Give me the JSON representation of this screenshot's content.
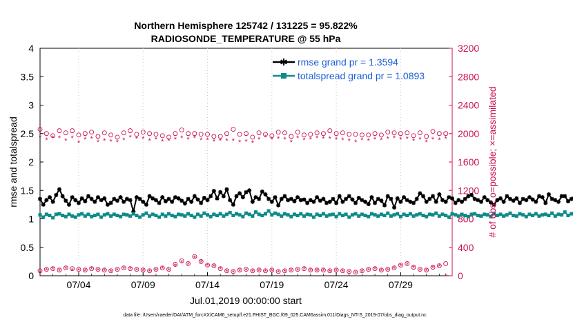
{
  "chart_data": {
    "type": "line",
    "title_line1": "Northern Hemisphere 125742 / 131225 = 95.822%",
    "title_line2": "RADIOSONDE_TEMPERATURE @ 55 hPa",
    "xlabel": "Jul.01,2019 00:00:00 start",
    "ylabel_left": "rmse and totalspread",
    "ylabel_right": "# of obs: o=possible; ×=assimilated",
    "x_range_days": [
      0,
      32
    ],
    "y_left_range": [
      0,
      4
    ],
    "y_right_range": [
      0,
      3200
    ],
    "x_ticks": [
      {
        "day": 3,
        "label": "07/04"
      },
      {
        "day": 8,
        "label": "07/09"
      },
      {
        "day": 13,
        "label": "07/14"
      },
      {
        "day": 18,
        "label": "07/19"
      },
      {
        "day": 23,
        "label": "07/24"
      },
      {
        "day": 28,
        "label": "07/29"
      }
    ],
    "y_left_ticks": [
      "0",
      "0.5",
      "1",
      "1.5",
      "2",
      "2.5",
      "3",
      "3.5",
      "4"
    ],
    "y_left_tick_values": [
      0,
      0.5,
      1,
      1.5,
      2,
      2.5,
      3,
      3.5,
      4
    ],
    "y_right_ticks": [
      "0",
      "400",
      "800",
      "1200",
      "1600",
      "2000",
      "2400",
      "2800",
      "3200"
    ],
    "y_right_tick_values": [
      0,
      400,
      800,
      1200,
      1600,
      2000,
      2400,
      2800,
      3200
    ],
    "legend_position": "top-right",
    "series": [
      {
        "name": "rmse grand pr = 1.3594",
        "color": "#000000",
        "marker": "star",
        "x_start": 0.0,
        "x_step": 0.25,
        "values": [
          1.35,
          1.25,
          1.33,
          1.38,
          1.3,
          1.42,
          1.52,
          1.4,
          1.32,
          1.25,
          1.38,
          1.33,
          1.28,
          1.36,
          1.31,
          1.4,
          1.35,
          1.3,
          1.38,
          1.33,
          1.36,
          1.25,
          1.28,
          1.35,
          1.32,
          1.38,
          1.3,
          1.35,
          1.33,
          1.13,
          1.38,
          1.35,
          1.3,
          1.25,
          1.4,
          1.36,
          1.33,
          1.28,
          1.38,
          1.31,
          1.35,
          1.3,
          1.38,
          1.36,
          1.32,
          1.27,
          1.35,
          1.3,
          1.4,
          1.34,
          1.28,
          1.37,
          1.33,
          1.4,
          1.49,
          1.36,
          1.47,
          1.4,
          1.52,
          1.33,
          1.25,
          1.4,
          1.45,
          1.38,
          1.47,
          1.5,
          1.3,
          1.38,
          1.35,
          1.48,
          1.43,
          1.35,
          1.3,
          1.38,
          1.24,
          1.35,
          1.4,
          1.33,
          1.35,
          1.31,
          1.38,
          1.33,
          1.34,
          1.28,
          1.33,
          1.3,
          1.38,
          1.32,
          1.35,
          1.28,
          1.3,
          1.35,
          1.28,
          1.4,
          1.3,
          1.35,
          1.4,
          1.34,
          1.28,
          1.37,
          1.33,
          1.3,
          1.26,
          1.38,
          1.28,
          1.35,
          1.32,
          1.24,
          1.4,
          1.35,
          1.2,
          1.36,
          1.3,
          1.38,
          1.33,
          1.3,
          1.28,
          1.35,
          1.45,
          1.4,
          1.3,
          1.35,
          1.4,
          1.3,
          1.43,
          1.33,
          1.3,
          1.38,
          1.36,
          1.28,
          1.33,
          1.3,
          1.35,
          1.4,
          1.42,
          1.35,
          1.33,
          1.3,
          1.38,
          1.33,
          1.29,
          1.25,
          1.33,
          1.36,
          1.3,
          1.4,
          1.35,
          1.32,
          1.36,
          1.28,
          1.35,
          1.33,
          1.38,
          1.34,
          1.3,
          1.4,
          1.38,
          1.28,
          1.43,
          1.35,
          1.33,
          1.3,
          1.4,
          1.4,
          1.31,
          1.35,
          1.38,
          1.28,
          1.35,
          1.35,
          1.32,
          1.26,
          1.4,
          1.33,
          1.25,
          1.36,
          1.38,
          1.3,
          1.38,
          1.33,
          1.28,
          1.38,
          1.35,
          1.4,
          1.36,
          1.3,
          1.38,
          1.33,
          1.3,
          1.35,
          1.33,
          1.4,
          1.25,
          1.33,
          1.38,
          1.3,
          1.35,
          1.38,
          1.3,
          1.4,
          1.35,
          1.36,
          1.38,
          1.28,
          1.35,
          1.33,
          1.42,
          1.36,
          1.38,
          1.28,
          1.37,
          1.35,
          1.3,
          1.4,
          1.35,
          1.35,
          1.28,
          1.38,
          1.33,
          1.28,
          1.43,
          1.35,
          1.3,
          1.45,
          1.38,
          1.3,
          1.36,
          1.33,
          1.4,
          1.38,
          1.33,
          1.35,
          1.38,
          1.4,
          1.33,
          1.3,
          1.38,
          1.45,
          1.35,
          1.33,
          1.4,
          1.38,
          1.35,
          1.3,
          1.38,
          1.33,
          1.35,
          1.4,
          1.36,
          1.38,
          1.33,
          1.4,
          1.35,
          1.4,
          1.3,
          1.35,
          1.38,
          1.33,
          1.38,
          1.3,
          1.35,
          1.35,
          1.36,
          1.4,
          1.35,
          1.3,
          1.38,
          1.33,
          1.4,
          1.35,
          1.3,
          1.42,
          1.35,
          1.38,
          1.33,
          1.3,
          1.38,
          1.33,
          1.35,
          1.36,
          1.3,
          1.25,
          1.35,
          1.4,
          1.38,
          1.36,
          1.35,
          1.3,
          1.38,
          1.33,
          1.4,
          1.35,
          1.33,
          1.3,
          1.38,
          1.35,
          1.36,
          1.38,
          1.35,
          1.38,
          1.3,
          1.36,
          1.33,
          1.4,
          1.35,
          1.3,
          1.38,
          1.35,
          1.36,
          1.33,
          1.35,
          1.38,
          1.33,
          1.3,
          1.35,
          1.4,
          1.35,
          1.38,
          1.33,
          1.3,
          1.35,
          1.38,
          1.33,
          1.36,
          1.3,
          1.35,
          1.4,
          1.38,
          1.33,
          1.35,
          1.36,
          1.38,
          1.35,
          1.3,
          1.38,
          1.35,
          1.35,
          1.33,
          1.35,
          1.28,
          1.3
        ]
      },
      {
        "name": "totalspread grand pr = 1.0893",
        "color": "#0f8a8a",
        "marker": "square",
        "x_start": 0.0,
        "x_step": 0.25,
        "values": [
          1.07,
          1.03,
          1.08,
          1.06,
          1.02,
          1.08,
          1.09,
          1.06,
          1.04,
          1.08,
          1.05,
          1.03,
          1.07,
          1.09,
          1.05,
          1.08,
          1.04,
          1.06,
          1.08,
          1.03,
          1.07,
          1.09,
          1.05,
          1.08,
          1.06,
          1.04,
          1.08,
          1.07,
          1.05,
          1.09,
          1.06,
          1.03,
          1.07,
          1.1,
          1.05,
          1.08,
          1.06,
          1.03,
          1.08,
          1.05,
          1.09,
          1.06,
          1.04,
          1.08,
          1.07,
          1.05,
          1.09,
          1.06,
          1.03,
          1.08,
          1.05,
          1.1,
          1.07,
          1.04,
          1.08,
          1.06,
          1.09,
          1.05,
          1.08,
          1.11,
          1.06,
          1.09,
          1.07,
          1.04,
          1.1,
          1.08,
          1.05,
          1.12,
          1.08,
          1.06,
          1.09,
          1.14,
          1.07,
          1.1,
          1.08,
          1.05,
          1.09,
          1.07,
          1.04,
          1.08,
          1.06,
          1.09,
          1.05,
          1.08,
          1.07,
          1.03,
          1.08,
          1.06,
          1.09,
          1.05,
          1.07,
          1.08,
          1.04,
          1.09,
          1.06,
          1.08,
          1.03,
          1.07,
          1.09,
          1.05,
          1.08,
          1.06,
          1.04,
          1.09,
          1.07,
          1.05,
          1.08,
          1.06,
          1.1,
          1.05,
          1.07,
          1.09,
          1.04,
          1.08,
          1.06,
          1.09,
          1.05,
          1.07,
          1.09,
          1.06,
          1.04,
          1.08,
          1.07,
          1.1,
          1.05,
          1.08,
          1.06,
          1.03,
          1.09,
          1.07,
          1.05,
          1.08,
          1.06,
          1.04,
          1.08,
          1.09,
          1.06,
          1.05,
          1.08,
          1.07,
          1.04,
          1.09,
          1.06,
          1.08,
          1.05,
          1.07,
          1.1,
          1.06,
          1.05,
          1.09,
          1.07,
          1.04,
          1.08,
          1.06,
          1.09,
          1.05,
          1.07,
          1.08,
          1.06,
          1.1,
          1.05,
          1.08,
          1.07,
          1.12,
          1.06,
          1.09,
          1.07,
          1.05,
          1.11,
          1.08,
          1.06,
          1.09,
          1.07,
          1.04,
          1.08,
          1.06,
          1.09,
          1.05,
          1.07,
          1.02,
          1.08,
          1.06,
          1.09,
          1.04,
          1.07,
          1.08,
          1.05,
          1.09,
          1.06,
          1.03,
          1.08,
          1.07,
          1.05,
          1.09,
          1.06,
          1.04,
          1.08,
          1.06,
          1.09,
          1.05,
          1.07,
          1.08,
          1.03,
          1.06,
          1.09,
          1.05,
          1.08,
          1.06,
          1.04,
          1.08,
          1.07,
          1.05,
          1.09,
          1.06,
          1.03,
          1.07,
          1.09,
          1.05,
          1.08,
          1.06,
          1.04,
          1.08,
          1.07,
          1.05,
          1.09,
          1.06,
          1.03,
          1.08,
          1.06,
          1.09,
          1.05,
          1.07,
          1.08,
          1.04,
          1.09,
          1.06,
          1.08,
          1.05,
          1.07,
          1.09,
          1.06,
          1.04,
          1.08,
          1.07,
          1.05,
          1.09,
          1.06,
          1.03,
          1.08,
          1.07,
          1.05,
          1.09,
          1.06,
          1.04,
          1.08,
          1.06,
          1.09,
          1.05,
          1.07,
          1.08,
          1.05,
          1.09,
          1.06,
          1.04,
          1.08,
          1.07,
          1.05,
          1.09,
          1.06,
          1.03,
          1.07,
          1.09,
          1.05,
          1.08,
          1.06,
          1.04,
          1.08,
          1.07,
          1.05,
          1.09,
          1.06,
          1.03,
          1.08,
          1.06,
          1.09,
          1.05,
          1.07,
          1.08,
          1.04,
          1.09,
          1.06,
          1.08,
          1.05,
          1.07,
          1.09,
          1.06,
          1.04,
          1.08,
          1.07,
          1.05,
          1.09,
          1.06,
          1.03,
          1.08,
          1.07,
          1.05,
          1.09,
          1.06,
          1.04,
          1.08,
          1.06,
          1.09,
          1.05,
          1.07,
          1.08,
          1.05,
          1.09,
          1.06,
          1.04,
          1.08,
          1.07,
          1.05,
          1.09,
          1.06,
          1.1,
          1.07,
          1.05,
          1.09,
          1.06,
          1.04,
          1.08,
          1.06,
          1.09,
          1.05,
          1.07,
          1.04,
          1.06
        ]
      }
    ],
    "obs_series": [
      {
        "name": "possible (upper)",
        "marker": "circle",
        "color": "#cc1155",
        "x_start": 0.0,
        "x_step": 0.5,
        "values": [
          2060,
          2000,
          1970,
          2040,
          2010,
          2040,
          1980,
          2000,
          2020,
          1960,
          2010,
          1980,
          1950,
          2010,
          2040,
          1990,
          2020,
          2000,
          1990,
          1970,
          1950,
          2000,
          2050,
          2000,
          2000,
          1990,
          1990,
          1960,
          1960,
          2000,
          2060,
          1990,
          2000,
          1950,
          2010,
          1990,
          1970,
          2020,
          2010,
          1960,
          2020,
          1980,
          1990,
          2010,
          2000,
          2040,
          2000,
          2010,
          1990,
          1990,
          1980,
          1980,
          2000,
          1980,
          2020,
          2010,
          2000,
          2010,
          1970,
          2010,
          1960,
          2030,
          2000,
          2000
        ]
      },
      {
        "name": "assimilated (upper)",
        "marker": "asterisk",
        "color": "#cc1155",
        "x_start": 0.0,
        "x_step": 0.5,
        "values": [
          1950,
          1910,
          1940,
          1940,
          1900,
          1940,
          1870,
          1920,
          1930,
          1880,
          1900,
          1890,
          1880,
          1910,
          1950,
          1930,
          1930,
          1900,
          1920,
          1890,
          1900,
          1920,
          1940,
          1920,
          1940,
          1910,
          1910,
          1890,
          1900,
          1900,
          1900,
          1880,
          1890,
          1870,
          1920,
          1950,
          1920,
          1930,
          1920,
          1880,
          1940,
          1910,
          1920,
          1940,
          1930,
          1930,
          1920,
          1910,
          1900,
          1880,
          1910,
          1900,
          1920,
          1910,
          1930,
          1940,
          1920,
          1930,
          1900,
          1920,
          1880,
          1920,
          1910,
          1930
        ]
      },
      {
        "name": "possible (lower)",
        "marker": "circle",
        "color": "#cc1155",
        "x_start": 0.0,
        "x_step": 0.5,
        "values": [
          70,
          90,
          100,
          80,
          110,
          100,
          90,
          80,
          100,
          90,
          80,
          70,
          90,
          110,
          100,
          90,
          80,
          70,
          90,
          110,
          90,
          160,
          210,
          170,
          270,
          200,
          150,
          140,
          100,
          70,
          60,
          80,
          90,
          70,
          80,
          70,
          80,
          60,
          70,
          80,
          90,
          100,
          80,
          80,
          80,
          70,
          80,
          70,
          60,
          50,
          70,
          90,
          100,
          80,
          90,
          110,
          150,
          170,
          120,
          90,
          80,
          120,
          140,
          170
        ]
      },
      {
        "name": "assimilated (lower)",
        "marker": "asterisk",
        "color": "#cc1155",
        "x_start": 0.0,
        "x_step": 0.5,
        "values": [
          50,
          80,
          90,
          70,
          100,
          80,
          80,
          70,
          90,
          80,
          70,
          60,
          80,
          100,
          90,
          80,
          70,
          60,
          80,
          100,
          80,
          140,
          190,
          160,
          250,
          190,
          140,
          130,
          90,
          60,
          50,
          70,
          80,
          60,
          70,
          60,
          70,
          50,
          60,
          70,
          80,
          90,
          70,
          70,
          70,
          60,
          70,
          60,
          50,
          40,
          60,
          80,
          90,
          70,
          80,
          100,
          140,
          160,
          110,
          80,
          70,
          110,
          130,
          0
        ]
      }
    ],
    "right_axis_color": "#cc1155"
  },
  "footer": {
    "data_file": "data file: /Users/raeder/DAI/ATM_forcXX/CAM6_setup/f.e21.FHIST_BGC.f09_025.CAM6assim.011/Diags_NTrS_2019-07/obs_diag_output.nc"
  }
}
